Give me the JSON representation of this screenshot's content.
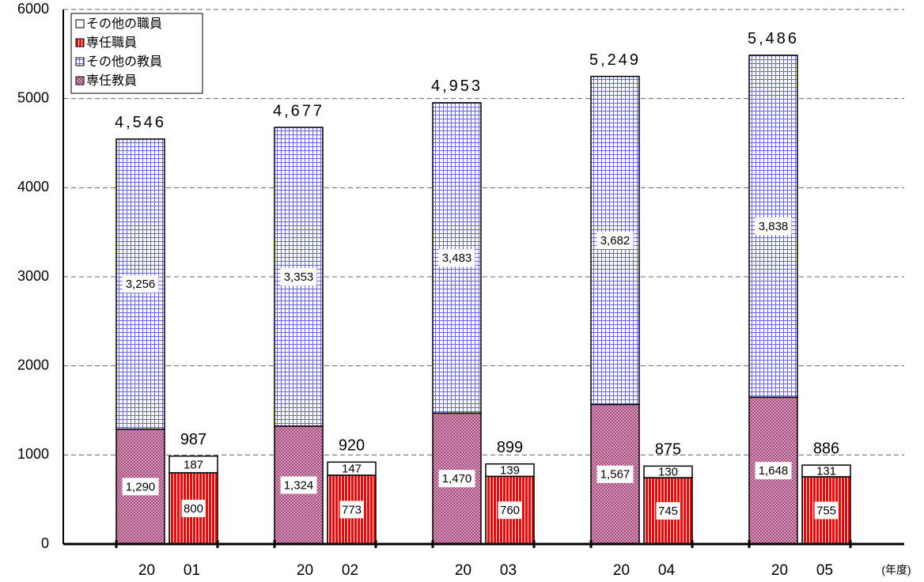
{
  "chart_data": {
    "type": "grouped_stacked_bar",
    "categories": [
      [
        "20",
        "01"
      ],
      [
        "20",
        "02"
      ],
      [
        "20",
        "03"
      ],
      [
        "20",
        "04"
      ],
      [
        "20",
        "05"
      ]
    ],
    "x_label": "(年度)",
    "series": [
      {
        "name": "専任教員",
        "stack": 0,
        "color": "#993366",
        "pattern": "crosshatch",
        "values": [
          1290,
          1324,
          1470,
          1567,
          1648
        ],
        "value_labels": [
          "1,290",
          "1,324",
          "1,470",
          "1,567",
          "1,648"
        ]
      },
      {
        "name": "その他の教員",
        "stack": 0,
        "color": "#6666ff",
        "pattern": "grid",
        "values": [
          3256,
          3353,
          3483,
          3682,
          3838
        ],
        "value_labels": [
          "3,256",
          "3,353",
          "3,483",
          "3,682",
          "3,838"
        ]
      },
      {
        "name": "専任職員",
        "stack": 1,
        "color": "#ff0000",
        "pattern": "vstripes",
        "values": [
          800,
          773,
          760,
          745,
          755
        ]
      },
      {
        "name": "その他の職員",
        "stack": 1,
        "color": "#ffffff",
        "pattern": "none",
        "values": [
          187,
          147,
          139,
          130,
          131
        ]
      }
    ],
    "totals": [
      [
        4546,
        4677,
        4953,
        5249,
        5486
      ],
      [
        987,
        920,
        899,
        875,
        886
      ]
    ],
    "total_labels": [
      [
        "4,546",
        "4,677",
        "4,953",
        "5,249",
        "5,486"
      ],
      null
    ],
    "ylim": [
      0,
      6000
    ],
    "yticks": [
      0,
      1000,
      2000,
      3000,
      4000,
      5000,
      6000
    ],
    "grid": true,
    "legend": "upper left"
  }
}
